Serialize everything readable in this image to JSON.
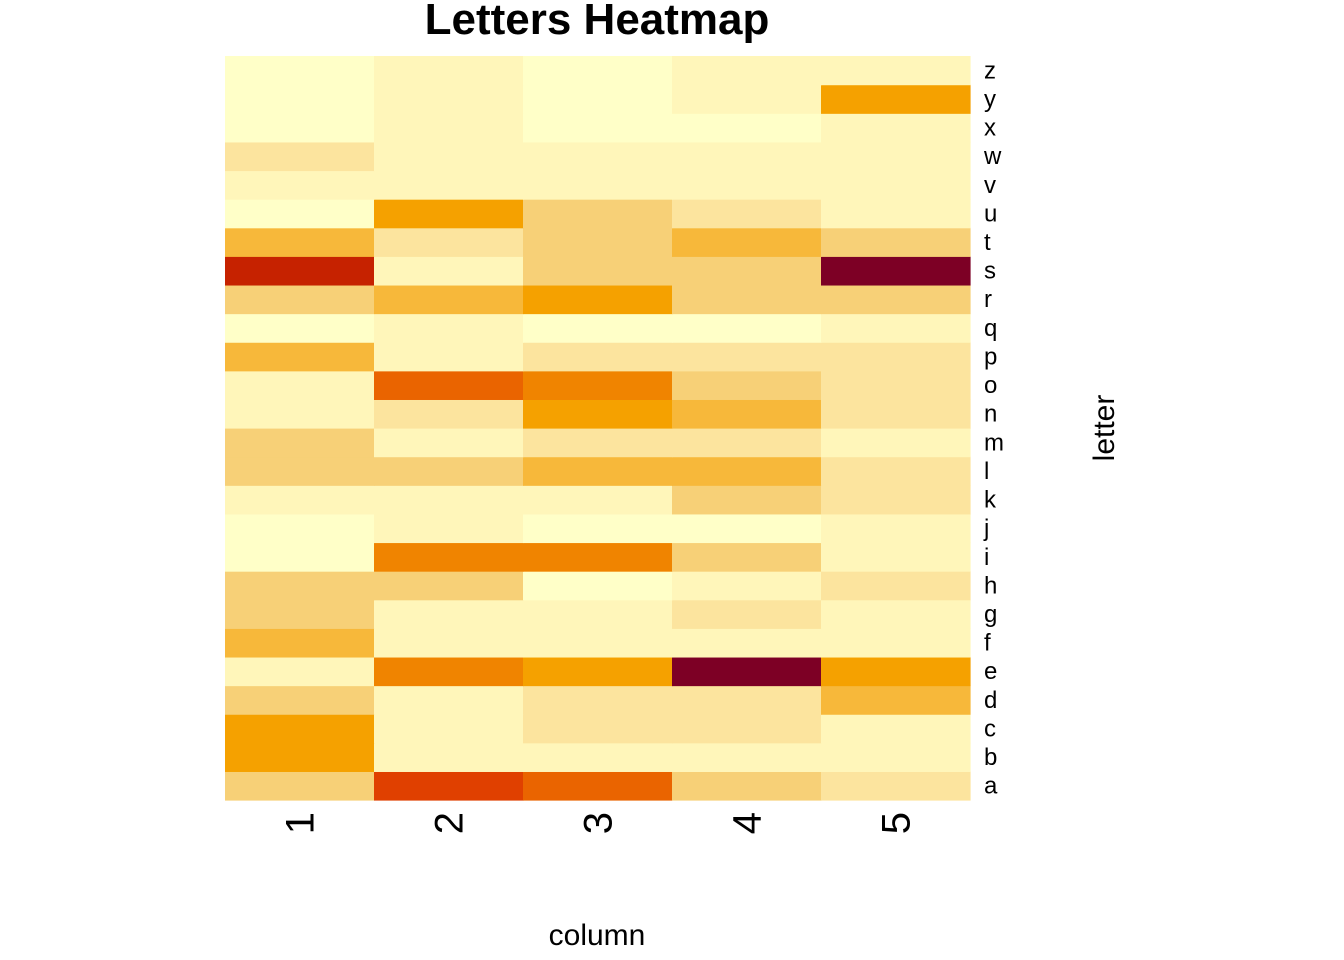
{
  "chart_data": {
    "type": "heatmap",
    "title": "Letters Heatmap",
    "xlabel": "column",
    "ylabel": "letter",
    "columns": [
      "1",
      "2",
      "3",
      "4",
      "5"
    ],
    "rows": [
      "a",
      "b",
      "c",
      "d",
      "e",
      "f",
      "g",
      "h",
      "i",
      "j",
      "k",
      "l",
      "m",
      "n",
      "o",
      "p",
      "q",
      "r",
      "s",
      "t",
      "u",
      "v",
      "w",
      "x",
      "y",
      "z"
    ],
    "palette": [
      "#FFFFC8",
      "#FFF6BA",
      "#FCE49E",
      "#F7D077",
      "#F7B83A",
      "#F5A100",
      "#F08400",
      "#EA6400",
      "#E04000",
      "#C62200",
      "#7D0025"
    ],
    "values": [
      [
        3,
        8,
        7,
        3,
        2
      ],
      [
        5,
        1,
        1,
        1,
        1
      ],
      [
        5,
        1,
        2,
        2,
        1
      ],
      [
        3,
        1,
        2,
        2,
        4
      ],
      [
        1,
        6,
        5,
        10,
        5
      ],
      [
        4,
        1,
        1,
        1,
        1
      ],
      [
        3,
        1,
        1,
        2,
        1
      ],
      [
        3,
        3,
        0,
        1,
        2
      ],
      [
        0,
        6,
        6,
        3,
        1
      ],
      [
        0,
        1,
        0,
        0,
        1
      ],
      [
        1,
        1,
        1,
        3,
        2
      ],
      [
        3,
        3,
        4,
        4,
        2
      ],
      [
        3,
        1,
        2,
        2,
        1
      ],
      [
        1,
        2,
        5,
        4,
        2
      ],
      [
        1,
        7,
        6,
        3,
        2
      ],
      [
        4,
        1,
        2,
        2,
        2
      ],
      [
        0,
        1,
        0,
        0,
        1
      ],
      [
        3,
        4,
        5,
        3,
        3
      ],
      [
        9,
        1,
        3,
        3,
        10
      ],
      [
        4,
        2,
        3,
        4,
        3
      ],
      [
        0,
        5,
        3,
        2,
        1
      ],
      [
        1,
        1,
        1,
        1,
        1
      ],
      [
        2,
        1,
        1,
        1,
        1
      ],
      [
        0,
        1,
        0,
        0,
        1
      ],
      [
        0,
        1,
        0,
        1,
        5
      ],
      [
        0,
        1,
        0,
        1,
        1
      ]
    ]
  }
}
